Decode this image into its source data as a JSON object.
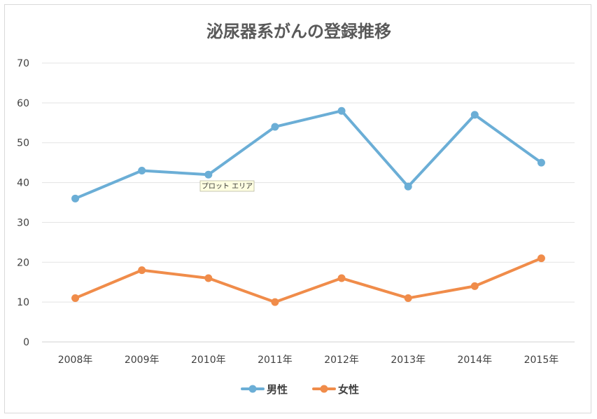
{
  "chart_data": {
    "type": "line",
    "title": "泌尿器系がんの登録推移",
    "categories": [
      "2008年",
      "2009年",
      "2010年",
      "2011年",
      "2012年",
      "2013年",
      "2014年",
      "2015年"
    ],
    "series": [
      {
        "name": "男性",
        "color": "#6baed6",
        "values": [
          36,
          43,
          42,
          54,
          58,
          39,
          57,
          45
        ]
      },
      {
        "name": "女性",
        "color": "#f08c4a",
        "values": [
          11,
          18,
          16,
          10,
          16,
          11,
          14,
          21
        ]
      }
    ],
    "ylim": [
      0,
      70
    ],
    "yticks": [
      0,
      10,
      20,
      30,
      40,
      50,
      60,
      70
    ],
    "grid": true,
    "legend": "bottom",
    "tooltip": "プロット エリア"
  }
}
